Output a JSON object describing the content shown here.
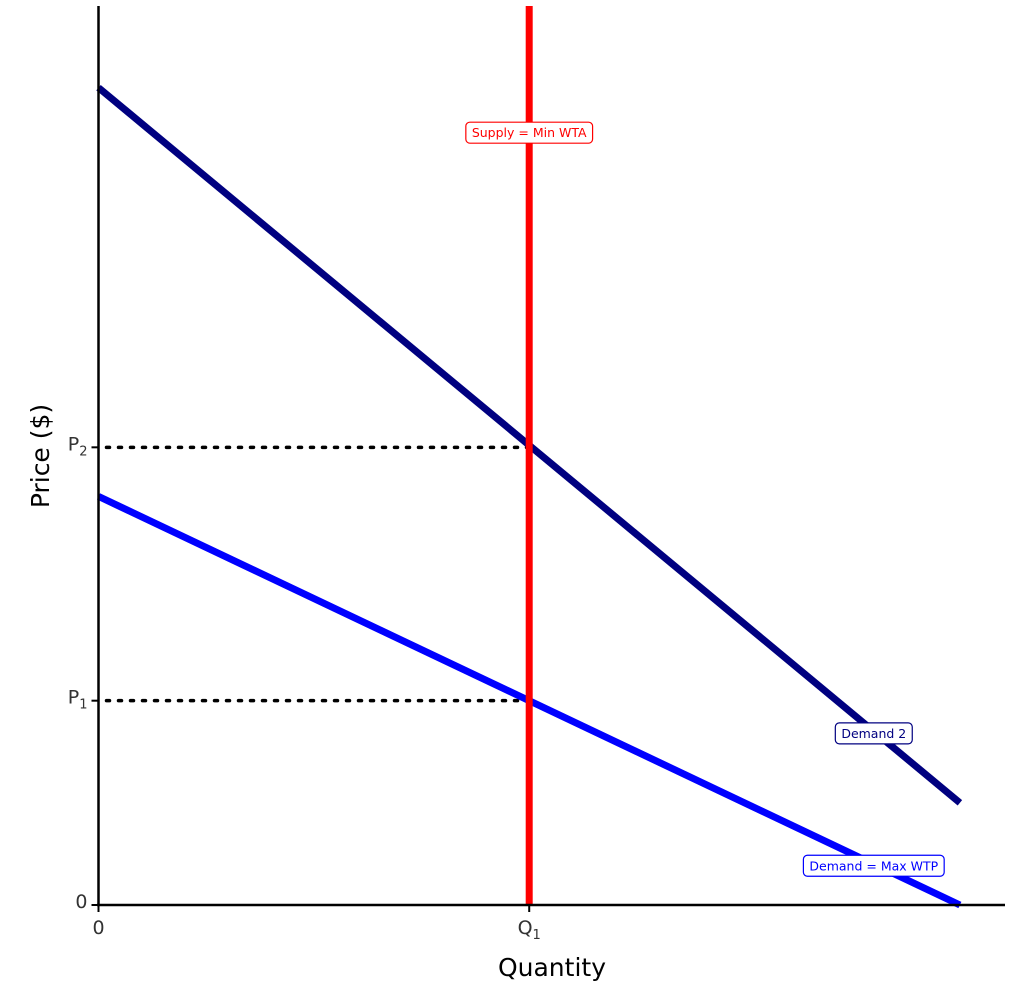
{
  "chart_data": {
    "type": "line",
    "title": "",
    "xlabel": "Quantity",
    "ylabel": "Price ($)",
    "xlim": [
      0,
      10.5
    ],
    "ylim": [
      0,
      11
    ],
    "grid": false,
    "x_ticks": [
      {
        "value": 0,
        "label": "0",
        "sub": ""
      },
      {
        "value": 5,
        "label": "Q",
        "sub": "1"
      }
    ],
    "y_ticks": [
      {
        "value": 0,
        "label": "0",
        "sub": ""
      },
      {
        "value": 2.5,
        "label": "P",
        "sub": "1"
      },
      {
        "value": 5.6,
        "label": "P",
        "sub": "2"
      }
    ],
    "series": [
      {
        "name": "Demand = Max WTP",
        "color": "#0000ff",
        "x": [
          0,
          10
        ],
        "y": [
          5,
          0
        ],
        "label_at": {
          "x": 9.0,
          "y": 0.48
        }
      },
      {
        "name": "Demand 2",
        "color": "#000080",
        "x": [
          0,
          10
        ],
        "y": [
          10,
          1.25
        ],
        "label_at": {
          "x": 9.0,
          "y": 2.1
        }
      },
      {
        "name": "Supply = Min WTA",
        "color": "#ff0000",
        "x": [
          5,
          5
        ],
        "y": [
          0,
          11
        ],
        "label_at": {
          "x": 5.0,
          "y": 9.45
        }
      }
    ],
    "reference_lines": [
      {
        "x": [
          0,
          5
        ],
        "y": [
          2.5,
          2.5
        ]
      },
      {
        "x": [
          0,
          5
        ],
        "y": [
          5.6,
          5.6
        ]
      }
    ]
  }
}
